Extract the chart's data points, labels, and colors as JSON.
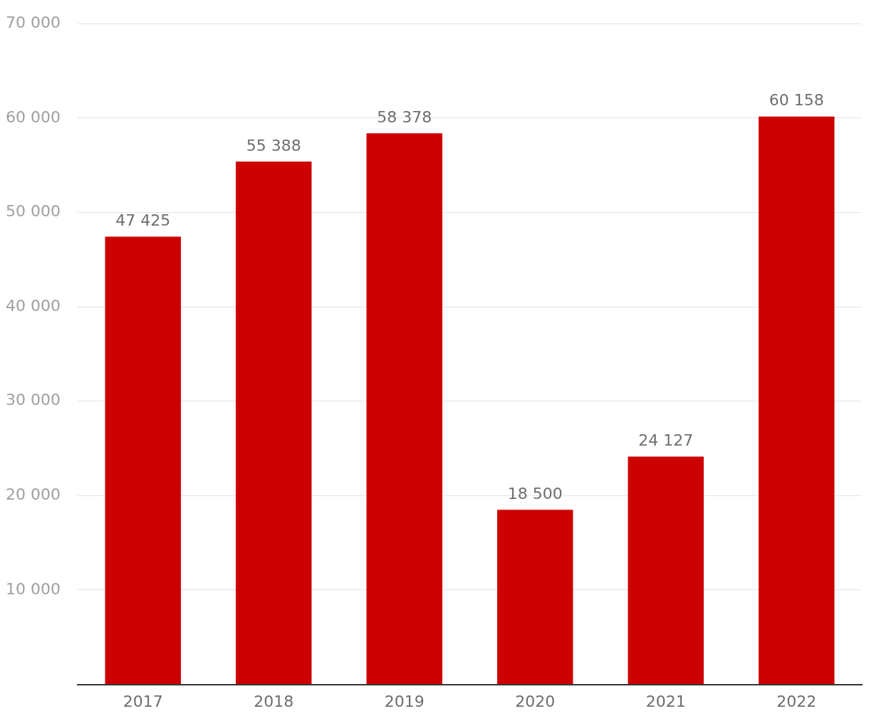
{
  "chart_data": {
    "type": "bar",
    "categories": [
      "2017",
      "2018",
      "2019",
      "2020",
      "2021",
      "2022"
    ],
    "values": [
      47425,
      55388,
      58378,
      18500,
      24127,
      60158
    ],
    "value_labels": [
      "47 425",
      "55 388",
      "58 378",
      "18 500",
      "24 127",
      "60 158"
    ],
    "color": "#cc0000",
    "ylim": [
      0,
      70000
    ],
    "yticks": [
      {
        "value": 0,
        "label": null
      },
      {
        "value": 10000,
        "label": "10 000"
      },
      {
        "value": 20000,
        "label": "20 000"
      },
      {
        "value": 30000,
        "label": "30 000"
      },
      {
        "value": 40000,
        "label": "40 000"
      },
      {
        "value": 50000,
        "label": "50 000"
      },
      {
        "value": 60000,
        "label": "60 000"
      },
      {
        "value": 70000,
        "label": "70 000"
      }
    ],
    "grid": "y"
  }
}
